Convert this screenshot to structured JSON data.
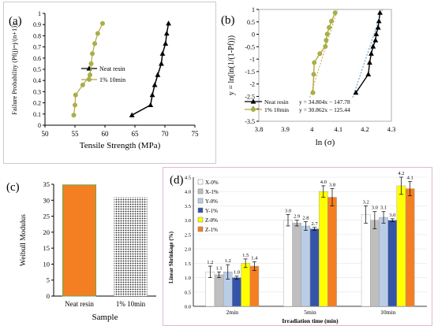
{
  "chart_data": [
    {
      "panel": "(a)",
      "type": "line",
      "xlabel": "Tensile Strength (MPa)",
      "ylabel": "Failure Probability  (Pf(j)=j/(n+1))",
      "xlim": [
        50,
        75
      ],
      "ylim": [
        0,
        1
      ],
      "x_ticks": [
        "50",
        "55",
        "60",
        "65",
        "70",
        "75"
      ],
      "y_ticks": [
        "0",
        "0.1",
        "0.2",
        "0.3",
        "0.4",
        "0.5",
        "0.6",
        "0.7",
        "0.8",
        "0.9",
        "1"
      ],
      "legend_position": "center-right",
      "grid": false,
      "series": [
        {
          "name": "Neat resin",
          "color": "#000000",
          "marker": "triangle",
          "points": [
            [
              64.5,
              0.09
            ],
            [
              67.6,
              0.18
            ],
            [
              67.9,
              0.27
            ],
            [
              68.3,
              0.36
            ],
            [
              68.8,
              0.45
            ],
            [
              69.4,
              0.55
            ],
            [
              69.6,
              0.64
            ],
            [
              70.1,
              0.73
            ],
            [
              70.3,
              0.82
            ],
            [
              70.6,
              0.91
            ]
          ]
        },
        {
          "name": "1% 10min",
          "color": "#c0a040",
          "marker": "circle",
          "points": [
            [
              54.8,
              0.09
            ],
            [
              55.0,
              0.18
            ],
            [
              55.1,
              0.27
            ],
            [
              56.3,
              0.36
            ],
            [
              57.5,
              0.45
            ],
            [
              57.7,
              0.55
            ],
            [
              57.9,
              0.64
            ],
            [
              58.3,
              0.73
            ],
            [
              58.8,
              0.82
            ],
            [
              59.6,
              0.91
            ]
          ]
        }
      ]
    },
    {
      "panel": "(b)",
      "type": "line",
      "xlabel": "ln (σ)",
      "ylabel": "y = ln(ln(1/(1-Pf)))",
      "xlim": [
        3.8,
        4.3
      ],
      "ylim": [
        -3.5,
        1
      ],
      "x_ticks": [
        "3.8",
        "3.9",
        "4",
        "4.1",
        "4.2",
        "4.3"
      ],
      "y_ticks": [
        "1",
        "0.5",
        "0",
        "-0.5",
        "-1",
        "-1.5",
        "-2",
        "-2.5",
        "-3",
        "-3.5"
      ],
      "grid": false,
      "series": [
        {
          "name": "Neat resin",
          "equation": "y = 34.804x  − 147.78",
          "color": "#000000",
          "marker": "triangle",
          "points": [
            [
              4.166,
              -2.35
            ],
            [
              4.213,
              -1.61
            ],
            [
              4.218,
              -1.14
            ],
            [
              4.224,
              -0.78
            ],
            [
              4.231,
              -0.49
            ],
            [
              4.24,
              -0.24
            ],
            [
              4.243,
              0.01
            ],
            [
              4.25,
              0.27
            ],
            [
              4.253,
              0.53
            ],
            [
              4.257,
              0.87
            ]
          ]
        },
        {
          "name": "1% 10min",
          "equation": "y = 30.862x  − 125.44",
          "color": "#c0a040",
          "marker": "circle",
          "points": [
            [
              4.004,
              -2.35
            ],
            [
              4.007,
              -1.61
            ],
            [
              4.009,
              -1.14
            ],
            [
              4.03,
              -0.78
            ],
            [
              4.051,
              -0.49
            ],
            [
              4.054,
              -0.24
            ],
            [
              4.058,
              0.01
            ],
            [
              4.065,
              0.27
            ],
            [
              4.074,
              0.53
            ],
            [
              4.088,
              0.87
            ]
          ]
        }
      ]
    },
    {
      "panel": "(c)",
      "type": "bar",
      "xlabel": "Sample",
      "ylabel": "Weibull Modulus",
      "ylim": [
        0,
        35
      ],
      "y_ticks": [
        "0",
        "5",
        "10",
        "15",
        "20",
        "25",
        "30",
        "35"
      ],
      "categories": [
        "Neat resin",
        "1% 10min"
      ],
      "values": [
        34.8,
        30.9
      ],
      "colors": [
        "#f37f22",
        "dots"
      ]
    },
    {
      "panel": "(d)",
      "type": "bar",
      "xlabel": "Irradiation time (min)",
      "ylabel": "Linear Shrinkage (%)",
      "ylim": [
        0,
        4.5
      ],
      "y_ticks": [
        "0.0",
        "0.5",
        "1.0",
        "1.5",
        "2.0",
        "2.5",
        "3.0",
        "3.5",
        "4.0",
        "4.5"
      ],
      "categories": [
        "2min",
        "5min",
        "10min"
      ],
      "legend_position": "top-left",
      "series": [
        {
          "name": "X-0%",
          "color": "#ffffff",
          "values": [
            1.2,
            3.0,
            3.2
          ],
          "errors": [
            0.2,
            0.2,
            0.3
          ],
          "labels": [
            "1.2",
            "3.0",
            "3.2"
          ]
        },
        {
          "name": "X-1%",
          "color": "#bfbfbf",
          "values": [
            1.1,
            2.9,
            3.0
          ],
          "errors": [
            0.1,
            0.1,
            0.3
          ],
          "labels": [
            "1.1",
            "2.9",
            "3.0"
          ]
        },
        {
          "name": "Y-0%",
          "color": "#b9cde6",
          "values": [
            1.2,
            2.8,
            3.1
          ],
          "errors": [
            0.25,
            0.15,
            0.2
          ],
          "labels": [
            "1.2",
            "2.8",
            "3.1"
          ]
        },
        {
          "name": "Y-1%",
          "color": "#3554a8",
          "values": [
            1.0,
            2.7,
            3.0
          ],
          "errors": [
            0.05,
            0.05,
            0.05
          ],
          "labels": [
            "1.0",
            "2.7",
            "3.0"
          ]
        },
        {
          "name": "Z-0%",
          "color": "#ffff00",
          "values": [
            1.5,
            4.0,
            4.2
          ],
          "errors": [
            0.15,
            0.2,
            0.3
          ],
          "labels": [
            "1.5",
            "4.0",
            "4.2"
          ]
        },
        {
          "name": "Z-1%",
          "color": "#f37f22",
          "values": [
            1.4,
            3.8,
            4.1
          ],
          "errors": [
            0.15,
            0.3,
            0.25
          ],
          "labels": [
            "1.4",
            "3.8",
            "4.1"
          ]
        }
      ]
    }
  ]
}
